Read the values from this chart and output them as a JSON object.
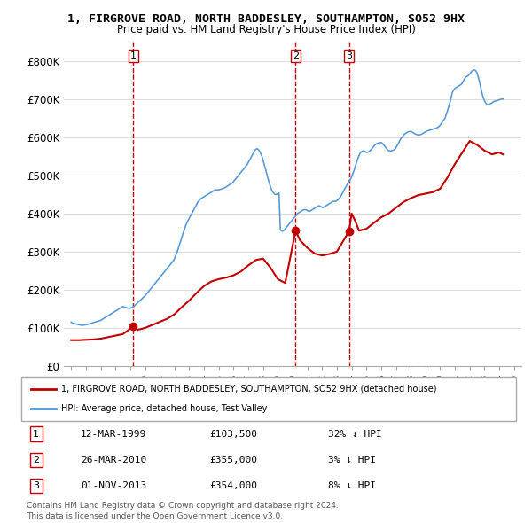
{
  "title_line1": "1, FIRGROVE ROAD, NORTH BADDESLEY, SOUTHAMPTON, SO52 9HX",
  "title_line2": "Price paid vs. HM Land Registry's House Price Index (HPI)",
  "ylabel": "",
  "ylim": [
    0,
    850000
  ],
  "yticks": [
    0,
    100000,
    200000,
    300000,
    400000,
    500000,
    600000,
    700000,
    800000
  ],
  "ytick_labels": [
    "£0",
    "£100K",
    "£200K",
    "£300K",
    "£400K",
    "£500K",
    "£600K",
    "£700K",
    "£800K"
  ],
  "hpi_color": "#5b9bd5",
  "price_color": "#c00000",
  "vline_color": "#c00000",
  "background_color": "#ffffff",
  "grid_color": "#dddddd",
  "legend_label_red": "1, FIRGROVE ROAD, NORTH BADDESLEY, SOUTHAMPTON, SO52 9HX (detached house)",
  "legend_label_blue": "HPI: Average price, detached house, Test Valley",
  "purchases": [
    {
      "num": 1,
      "date": "12-MAR-1999",
      "price": 103500,
      "hpi_text": "32% ↓ HPI",
      "x_year": 1999.2
    },
    {
      "num": 2,
      "date": "26-MAR-2010",
      "price": 355000,
      "hpi_text": "3% ↓ HPI",
      "x_year": 2010.2
    },
    {
      "num": 3,
      "date": "01-NOV-2013",
      "price": 354000,
      "hpi_text": "8% ↓ HPI",
      "x_year": 2013.83
    }
  ],
  "footer_line1": "Contains HM Land Registry data © Crown copyright and database right 2024.",
  "footer_line2": "This data is licensed under the Open Government Licence v3.0.",
  "hpi_data": {
    "years": [
      1995.0,
      1995.08,
      1995.17,
      1995.25,
      1995.33,
      1995.42,
      1995.5,
      1995.58,
      1995.67,
      1995.75,
      1995.83,
      1995.92,
      1996.0,
      1996.08,
      1996.17,
      1996.25,
      1996.33,
      1996.42,
      1996.5,
      1996.58,
      1996.67,
      1996.75,
      1996.83,
      1996.92,
      1997.0,
      1997.08,
      1997.17,
      1997.25,
      1997.33,
      1997.42,
      1997.5,
      1997.58,
      1997.67,
      1997.75,
      1997.83,
      1997.92,
      1998.0,
      1998.08,
      1998.17,
      1998.25,
      1998.33,
      1998.42,
      1998.5,
      1998.58,
      1998.67,
      1998.75,
      1998.83,
      1998.92,
      1999.0,
      1999.08,
      1999.17,
      1999.25,
      1999.33,
      1999.42,
      1999.5,
      1999.58,
      1999.67,
      1999.75,
      1999.83,
      1999.92,
      2000.0,
      2000.08,
      2000.17,
      2000.25,
      2000.33,
      2000.42,
      2000.5,
      2000.58,
      2000.67,
      2000.75,
      2000.83,
      2000.92,
      2001.0,
      2001.08,
      2001.17,
      2001.25,
      2001.33,
      2001.42,
      2001.5,
      2001.58,
      2001.67,
      2001.75,
      2001.83,
      2001.92,
      2002.0,
      2002.08,
      2002.17,
      2002.25,
      2002.33,
      2002.42,
      2002.5,
      2002.58,
      2002.67,
      2002.75,
      2002.83,
      2002.92,
      2003.0,
      2003.08,
      2003.17,
      2003.25,
      2003.33,
      2003.42,
      2003.5,
      2003.58,
      2003.67,
      2003.75,
      2003.83,
      2003.92,
      2004.0,
      2004.08,
      2004.17,
      2004.25,
      2004.33,
      2004.42,
      2004.5,
      2004.58,
      2004.67,
      2004.75,
      2004.83,
      2004.92,
      2005.0,
      2005.08,
      2005.17,
      2005.25,
      2005.33,
      2005.42,
      2005.5,
      2005.58,
      2005.67,
      2005.75,
      2005.83,
      2005.92,
      2006.0,
      2006.08,
      2006.17,
      2006.25,
      2006.33,
      2006.42,
      2006.5,
      2006.58,
      2006.67,
      2006.75,
      2006.83,
      2006.92,
      2007.0,
      2007.08,
      2007.17,
      2007.25,
      2007.33,
      2007.42,
      2007.5,
      2007.58,
      2007.67,
      2007.75,
      2007.83,
      2007.92,
      2008.0,
      2008.08,
      2008.17,
      2008.25,
      2008.33,
      2008.42,
      2008.5,
      2008.58,
      2008.67,
      2008.75,
      2008.83,
      2008.92,
      2009.0,
      2009.08,
      2009.17,
      2009.25,
      2009.33,
      2009.42,
      2009.5,
      2009.58,
      2009.67,
      2009.75,
      2009.83,
      2009.92,
      2010.0,
      2010.08,
      2010.17,
      2010.25,
      2010.33,
      2010.42,
      2010.5,
      2010.58,
      2010.67,
      2010.75,
      2010.83,
      2010.92,
      2011.0,
      2011.08,
      2011.17,
      2011.25,
      2011.33,
      2011.42,
      2011.5,
      2011.58,
      2011.67,
      2011.75,
      2011.83,
      2011.92,
      2012.0,
      2012.08,
      2012.17,
      2012.25,
      2012.33,
      2012.42,
      2012.5,
      2012.58,
      2012.67,
      2012.75,
      2012.83,
      2012.92,
      2013.0,
      2013.08,
      2013.17,
      2013.25,
      2013.33,
      2013.42,
      2013.5,
      2013.58,
      2013.67,
      2013.75,
      2013.83,
      2013.92,
      2014.0,
      2014.08,
      2014.17,
      2014.25,
      2014.33,
      2014.42,
      2014.5,
      2014.58,
      2014.67,
      2014.75,
      2014.83,
      2014.92,
      2015.0,
      2015.08,
      2015.17,
      2015.25,
      2015.33,
      2015.42,
      2015.5,
      2015.58,
      2015.67,
      2015.75,
      2015.83,
      2015.92,
      2016.0,
      2016.08,
      2016.17,
      2016.25,
      2016.33,
      2016.42,
      2016.5,
      2016.58,
      2016.67,
      2016.75,
      2016.83,
      2016.92,
      2017.0,
      2017.08,
      2017.17,
      2017.25,
      2017.33,
      2017.42,
      2017.5,
      2017.58,
      2017.67,
      2017.75,
      2017.83,
      2017.92,
      2018.0,
      2018.08,
      2018.17,
      2018.25,
      2018.33,
      2018.42,
      2018.5,
      2018.58,
      2018.67,
      2018.75,
      2018.83,
      2018.92,
      2019.0,
      2019.08,
      2019.17,
      2019.25,
      2019.33,
      2019.42,
      2019.5,
      2019.58,
      2019.67,
      2019.75,
      2019.83,
      2019.92,
      2020.0,
      2020.08,
      2020.17,
      2020.25,
      2020.33,
      2020.42,
      2020.5,
      2020.58,
      2020.67,
      2020.75,
      2020.83,
      2020.92,
      2021.0,
      2021.08,
      2021.17,
      2021.25,
      2021.33,
      2021.42,
      2021.5,
      2021.58,
      2021.67,
      2021.75,
      2021.83,
      2021.92,
      2022.0,
      2022.08,
      2022.17,
      2022.25,
      2022.33,
      2022.42,
      2022.5,
      2022.58,
      2022.67,
      2022.75,
      2022.83,
      2022.92,
      2023.0,
      2023.08,
      2023.17,
      2023.25,
      2023.33,
      2023.42,
      2023.5,
      2023.58,
      2023.67,
      2023.75,
      2023.83,
      2023.92,
      2024.0,
      2024.08,
      2024.17,
      2024.25
    ],
    "values": [
      115000,
      113000,
      112000,
      111000,
      110000,
      109000,
      108500,
      108000,
      107500,
      107000,
      107500,
      108000,
      108500,
      109000,
      110000,
      111000,
      112000,
      113000,
      114000,
      115000,
      116000,
      117000,
      118000,
      119000,
      120000,
      122000,
      124000,
      126000,
      128000,
      130000,
      132000,
      134000,
      136000,
      138000,
      140000,
      142000,
      144000,
      146000,
      148000,
      150000,
      152000,
      154000,
      156000,
      155000,
      154000,
      153000,
      152000,
      151000,
      152000,
      153000,
      155000,
      157000,
      160000,
      163000,
      166000,
      169000,
      172000,
      175000,
      178000,
      181000,
      184000,
      188000,
      192000,
      196000,
      200000,
      204000,
      208000,
      212000,
      216000,
      220000,
      224000,
      228000,
      232000,
      236000,
      240000,
      244000,
      248000,
      252000,
      256000,
      260000,
      264000,
      268000,
      272000,
      276000,
      282000,
      290000,
      298000,
      308000,
      318000,
      328000,
      338000,
      348000,
      358000,
      368000,
      375000,
      382000,
      388000,
      394000,
      400000,
      406000,
      412000,
      418000,
      424000,
      430000,
      434000,
      438000,
      440000,
      442000,
      444000,
      446000,
      448000,
      450000,
      452000,
      454000,
      456000,
      458000,
      460000,
      462000,
      462000,
      462000,
      462000,
      463000,
      464000,
      465000,
      466000,
      468000,
      470000,
      472000,
      474000,
      476000,
      478000,
      480000,
      484000,
      488000,
      492000,
      496000,
      500000,
      504000,
      508000,
      512000,
      516000,
      520000,
      524000,
      528000,
      534000,
      540000,
      546000,
      552000,
      558000,
      564000,
      568000,
      570000,
      568000,
      564000,
      558000,
      550000,
      540000,
      528000,
      516000,
      504000,
      492000,
      480000,
      470000,
      462000,
      456000,
      452000,
      450000,
      450000,
      452000,
      454000,
      358000,
      354000,
      354000,
      356000,
      360000,
      364000,
      368000,
      372000,
      376000,
      380000,
      384000,
      388000,
      392000,
      396000,
      400000,
      402000,
      404000,
      406000,
      408000,
      410000,
      410000,
      410000,
      408000,
      406000,
      406000,
      408000,
      410000,
      412000,
      414000,
      416000,
      418000,
      420000,
      420000,
      418000,
      416000,
      416000,
      418000,
      420000,
      422000,
      424000,
      426000,
      428000,
      430000,
      432000,
      432000,
      432000,
      434000,
      436000,
      440000,
      444000,
      450000,
      456000,
      462000,
      468000,
      474000,
      480000,
      485000,
      490000,
      496000,
      504000,
      514000,
      524000,
      534000,
      544000,
      552000,
      558000,
      562000,
      564000,
      564000,
      562000,
      560000,
      560000,
      562000,
      565000,
      568000,
      572000,
      576000,
      580000,
      582000,
      584000,
      585000,
      586000,
      586000,
      584000,
      580000,
      576000,
      572000,
      568000,
      565000,
      564000,
      564000,
      565000,
      566000,
      568000,
      572000,
      578000,
      584000,
      590000,
      596000,
      600000,
      604000,
      608000,
      610000,
      612000,
      614000,
      615000,
      615000,
      614000,
      612000,
      610000,
      608000,
      607000,
      606000,
      606000,
      607000,
      608000,
      610000,
      612000,
      614000,
      616000,
      617000,
      618000,
      619000,
      620000,
      621000,
      622000,
      623000,
      624000,
      626000,
      628000,
      632000,
      636000,
      642000,
      646000,
      650000,
      660000,
      670000,
      680000,
      692000,
      706000,
      718000,
      724000,
      728000,
      730000,
      732000,
      734000,
      736000,
      738000,
      742000,
      748000,
      754000,
      758000,
      760000,
      762000,
      766000,
      770000,
      774000,
      776000,
      776000,
      774000,
      768000,
      758000,
      744000,
      730000,
      716000,
      704000,
      696000,
      690000,
      686000,
      685000,
      686000,
      688000,
      690000,
      692000,
      694000,
      695000,
      696000,
      697000,
      698000,
      699000,
      700000,
      700000
    ]
  },
  "red_data": {
    "years": [
      1995.0,
      1995.5,
      1996.0,
      1996.5,
      1997.0,
      1997.5,
      1998.0,
      1998.5,
      1999.2,
      1999.5,
      2000.0,
      2000.5,
      2001.0,
      2001.5,
      2002.0,
      2002.5,
      2003.0,
      2003.5,
      2004.0,
      2004.5,
      2005.0,
      2005.5,
      2006.0,
      2006.5,
      2007.0,
      2007.5,
      2008.0,
      2008.5,
      2009.0,
      2009.5,
      2010.2,
      2010.5,
      2011.0,
      2011.5,
      2012.0,
      2012.5,
      2013.0,
      2013.83,
      2014.0,
      2014.25,
      2014.5,
      2015.0,
      2015.5,
      2016.0,
      2016.5,
      2017.0,
      2017.5,
      2018.0,
      2018.5,
      2019.0,
      2019.5,
      2020.0,
      2020.5,
      2021.0,
      2021.5,
      2022.0,
      2022.5,
      2023.0,
      2023.5,
      2024.0,
      2024.25
    ],
    "values": [
      68000,
      68000,
      69000,
      70000,
      72000,
      76000,
      80000,
      84000,
      103500,
      95000,
      100000,
      108000,
      116000,
      124000,
      136000,
      155000,
      172000,
      192000,
      210000,
      222000,
      228000,
      232000,
      238000,
      248000,
      264000,
      278000,
      282000,
      258000,
      228000,
      218000,
      355000,
      330000,
      310000,
      295000,
      290000,
      294000,
      300000,
      354000,
      400000,
      380000,
      355000,
      360000,
      375000,
      390000,
      400000,
      415000,
      430000,
      440000,
      448000,
      452000,
      456000,
      465000,
      495000,
      530000,
      560000,
      590000,
      580000,
      565000,
      555000,
      560000,
      555000
    ]
  },
  "xlim": [
    1994.5,
    2025.5
  ],
  "xtick_years": [
    1995,
    1996,
    1997,
    1998,
    1999,
    2000,
    2001,
    2002,
    2003,
    2004,
    2005,
    2006,
    2007,
    2008,
    2009,
    2010,
    2011,
    2012,
    2013,
    2014,
    2015,
    2016,
    2017,
    2018,
    2019,
    2020,
    2021,
    2022,
    2023,
    2024,
    2025
  ]
}
